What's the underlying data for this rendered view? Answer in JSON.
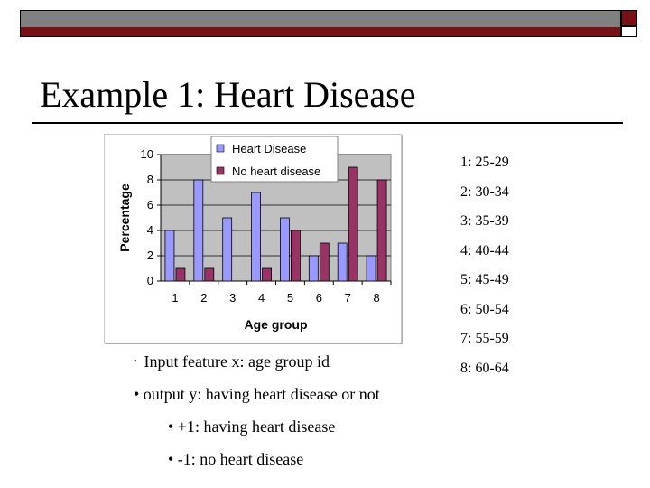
{
  "slide": {
    "title": "Example 1: Heart Disease"
  },
  "age_groups": [
    "1: 25-29",
    "2: 30-34",
    "3: 35-39",
    "4: 40-44",
    "5: 45-49",
    "6: 50-54",
    "7: 55-59",
    "8: 60-64"
  ],
  "bullets": {
    "b1": "Input feature x: age group id",
    "b2": "• output y: having heart disease or not",
    "b3": "• +1: having heart disease",
    "b4": "• -1: no heart disease",
    "b1_marker": "•"
  },
  "chart_data": {
    "type": "bar",
    "categories": [
      "1",
      "2",
      "3",
      "4",
      "5",
      "6",
      "7",
      "8"
    ],
    "series": [
      {
        "name": "Heart Disease",
        "values": [
          4,
          8,
          5,
          7,
          5,
          2,
          3,
          2
        ],
        "color": "#9999ff"
      },
      {
        "name": "No heart disease",
        "values": [
          1,
          1,
          0,
          1,
          4,
          3,
          9,
          8
        ],
        "color": "#993366"
      }
    ],
    "xlabel": "Age group",
    "ylabel": "Percentage",
    "ylim": [
      0,
      10
    ],
    "yticks": [
      0,
      2,
      4,
      6,
      8,
      10
    ],
    "grid": true,
    "legend_position": "top",
    "plot_background": "#c0c0c0"
  }
}
